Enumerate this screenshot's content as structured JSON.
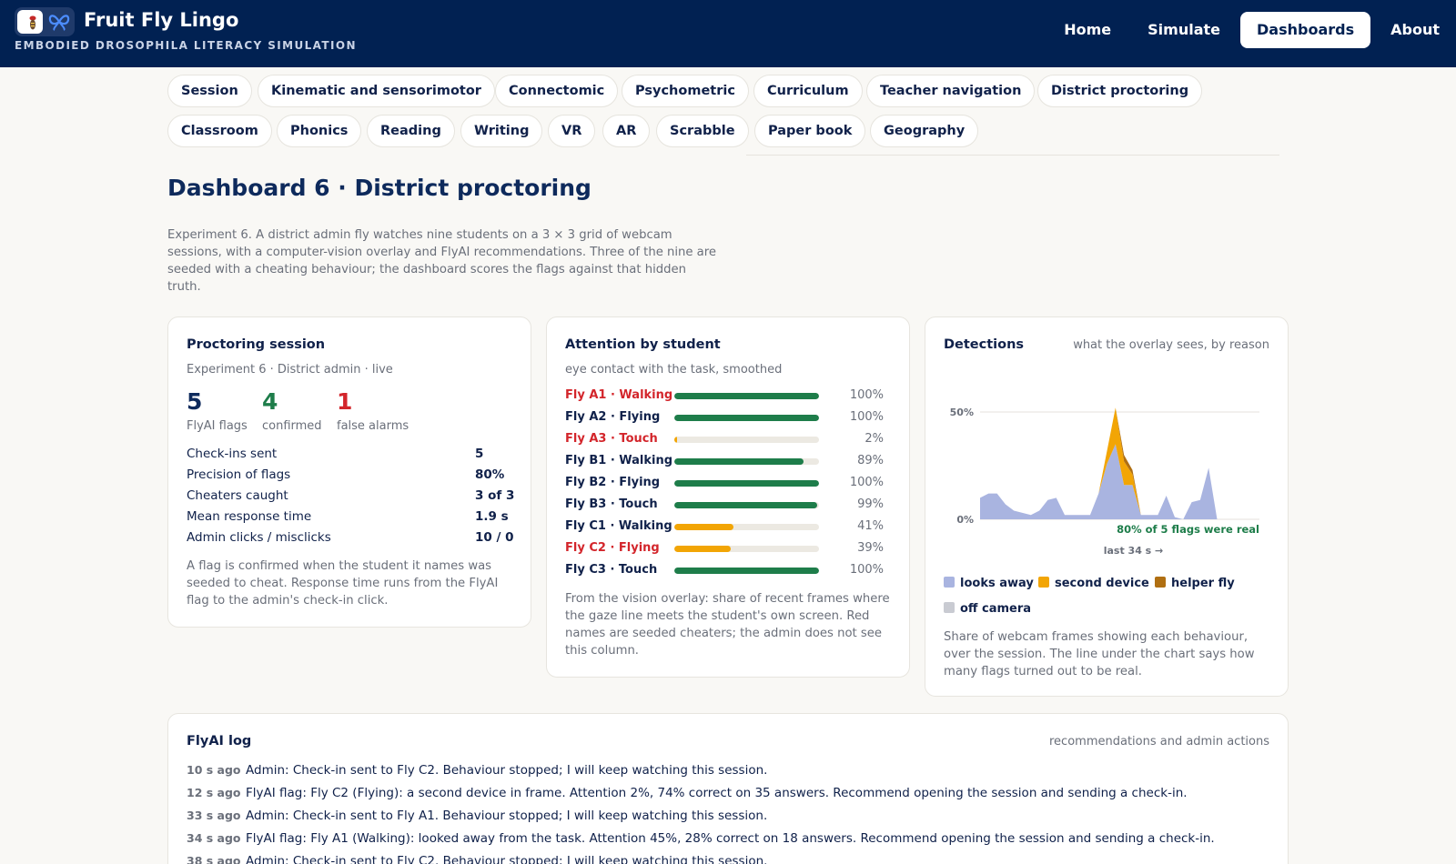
{
  "header": {
    "title": "Fruit Fly Lingo",
    "subtitle": "EMBODIED DROSOPHILA LITERACY SIMULATION",
    "nav": [
      "Home",
      "Simulate",
      "Dashboards",
      "About"
    ],
    "active_nav": "Dashboards"
  },
  "tabs": {
    "row1": [
      "Session",
      "Kinematic and sensorimotor",
      "Connectomic",
      "Psychometric",
      "Curriculum",
      "Teacher navigation",
      "District proctoring"
    ],
    "row2": [
      "Classroom",
      "Phonics",
      "Reading",
      "Writing",
      "VR",
      "AR",
      "Scrabble",
      "Paper book",
      "Geography"
    ]
  },
  "page": {
    "title": "Dashboard 6 · District proctoring",
    "intro": "Experiment 6. A district admin fly watches nine students on a 3 × 3 grid of webcam sessions, with a computer-vision overlay and FlyAI recommendations. Three of the nine are seeded with a cheating behaviour; the dashboard scores the flags against that hidden truth."
  },
  "session": {
    "title": "Proctoring session",
    "subtitle": "Experiment 6 · District admin · live",
    "flags": {
      "value": "5",
      "label": "FlyAI flags"
    },
    "confirmed": {
      "value": "4",
      "label": "confirmed"
    },
    "false_alarms": {
      "value": "1",
      "label": "false alarms"
    },
    "stats": [
      {
        "label": "Check-ins sent",
        "value": "5"
      },
      {
        "label": "Precision of flags",
        "value": "80%"
      },
      {
        "label": "Cheaters caught",
        "value": "3 of 3"
      },
      {
        "label": "Mean response time",
        "value": "1.9 s"
      },
      {
        "label": "Admin clicks / misclicks",
        "value": "10 / 0"
      }
    ],
    "footnote": "A flag is confirmed when the student it names was seeded to cheat. Response time runs from the FlyAI flag to the admin's check-in click."
  },
  "attention": {
    "title": "Attention by student",
    "subtitle": "eye contact with the task, smoothed",
    "rows": [
      {
        "name": "Fly A1 · Walking",
        "pct": 100,
        "pct_label": "100%",
        "cheater": true,
        "color": "#1e7d4a"
      },
      {
        "name": "Fly A2 · Flying",
        "pct": 100,
        "pct_label": "100%",
        "cheater": false,
        "color": "#1e7d4a"
      },
      {
        "name": "Fly A3 · Touch",
        "pct": 2,
        "pct_label": "2%",
        "cheater": true,
        "color": "#f2a505"
      },
      {
        "name": "Fly B1 · Walking",
        "pct": 89,
        "pct_label": "89%",
        "cheater": false,
        "color": "#1e7d4a"
      },
      {
        "name": "Fly B2 · Flying",
        "pct": 100,
        "pct_label": "100%",
        "cheater": false,
        "color": "#1e7d4a"
      },
      {
        "name": "Fly B3 · Touch",
        "pct": 99,
        "pct_label": "99%",
        "cheater": false,
        "color": "#1e7d4a"
      },
      {
        "name": "Fly C1 · Walking",
        "pct": 41,
        "pct_label": "41%",
        "cheater": false,
        "color": "#f2a505"
      },
      {
        "name": "Fly C2 · Flying",
        "pct": 39,
        "pct_label": "39%",
        "cheater": true,
        "color": "#f2a505"
      },
      {
        "name": "Fly C3 · Touch",
        "pct": 100,
        "pct_label": "100%",
        "cheater": false,
        "color": "#1e7d4a"
      }
    ],
    "footnote": "From the vision overlay: share of recent frames where the gaze line meets the student's own screen. Red names are seeded cheaters; the admin does not see this column."
  },
  "detections": {
    "title": "Detections",
    "subtitle": "what the overlay sees, by reason",
    "summary": "80% of 5 flags were real",
    "time_label": "last 34 s →",
    "footnote": "Share of webcam frames showing each behaviour, over the session. The line under the chart says how many flags turned out to be real."
  },
  "chart_data": {
    "type": "area",
    "stacked": true,
    "y_ticks": [
      "50%",
      "0%"
    ],
    "ylim": [
      0,
      0.55
    ],
    "x": [
      0,
      1,
      2,
      3,
      4,
      5,
      6,
      7,
      8,
      9,
      10,
      11,
      12,
      13,
      14,
      15,
      16,
      17,
      18,
      19,
      20,
      21,
      22,
      23,
      24,
      25,
      26,
      27,
      28,
      29,
      30,
      31,
      32,
      33
    ],
    "series": [
      {
        "name": "looks away",
        "color": "#a9b4e0",
        "values": [
          0.1,
          0.12,
          0.12,
          0.07,
          0.04,
          0.03,
          0.02,
          0.04,
          0.09,
          0.1,
          0.02,
          0.02,
          0.02,
          0.02,
          0.12,
          0.26,
          0.35,
          0.16,
          0.16,
          0.02,
          0.02,
          0.02,
          0.11,
          0.01,
          0.0,
          0.08,
          0.09,
          0.24,
          0,
          0,
          0,
          0,
          0,
          0
        ]
      },
      {
        "name": "second device",
        "color": "#f2a505",
        "values": [
          0,
          0,
          0,
          0,
          0,
          0,
          0,
          0,
          0,
          0,
          0,
          0,
          0,
          0,
          0,
          0.06,
          0.17,
          0.11,
          0.05,
          0,
          0,
          0,
          0,
          0,
          0,
          0,
          0,
          0,
          0,
          0,
          0,
          0,
          0,
          0
        ]
      },
      {
        "name": "helper fly",
        "color": "#b06f12",
        "values": [
          0,
          0,
          0,
          0,
          0,
          0,
          0,
          0,
          0,
          0,
          0,
          0,
          0,
          0,
          0,
          0,
          0,
          0.03,
          0.02,
          0,
          0,
          0,
          0,
          0,
          0,
          0,
          0,
          0,
          0,
          0,
          0,
          0,
          0,
          0
        ]
      },
      {
        "name": "off camera",
        "color": "#c9cbd2",
        "values": [
          0,
          0,
          0,
          0,
          0,
          0,
          0,
          0,
          0,
          0,
          0,
          0,
          0,
          0,
          0,
          0,
          0,
          0,
          0,
          0,
          0,
          0,
          0,
          0,
          0,
          0,
          0,
          0,
          0,
          0,
          0,
          0,
          0,
          0
        ]
      }
    ]
  },
  "log": {
    "title": "FlyAI log",
    "subtitle": "recommendations and admin actions",
    "entries": [
      {
        "time": "10 s ago",
        "text": "Admin: Check-in sent to Fly C2. Behaviour stopped; I will keep watching this session."
      },
      {
        "time": "12 s ago",
        "text": "FlyAI flag: Fly C2 (Flying): a second device in frame. Attention 2%, 74% correct on 35 answers. Recommend opening the session and sending a check-in."
      },
      {
        "time": "33 s ago",
        "text": "Admin: Check-in sent to Fly A1. Behaviour stopped; I will keep watching this session."
      },
      {
        "time": "34 s ago",
        "text": "FlyAI flag: Fly A1 (Walking): looked away from the task. Attention 45%, 28% correct on 18 answers. Recommend opening the session and sending a check-in."
      },
      {
        "time": "38 s ago",
        "text": "Admin: Check-in sent to Fly C2. Behaviour stopped; I will keep watching this session."
      }
    ]
  }
}
